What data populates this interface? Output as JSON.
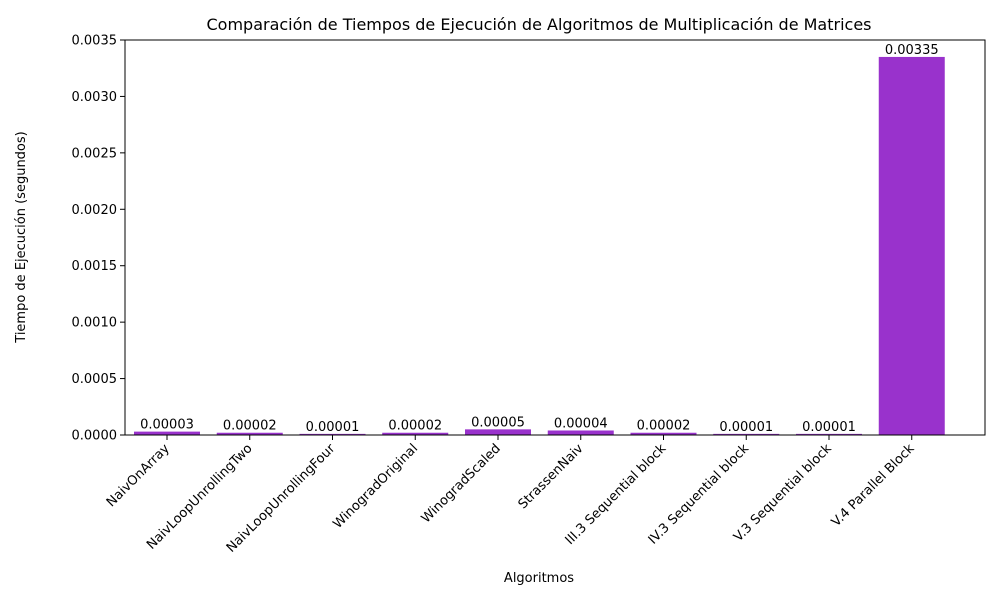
{
  "chart_data": {
    "type": "bar",
    "title": "Comparación de Tiempos de Ejecución de Algoritmos de Multiplicación de Matrices",
    "xlabel": "Algoritmos",
    "ylabel": "Tiempo de Ejecución (segundos)",
    "ylim": [
      0,
      0.0035
    ],
    "yticks": [
      "0.0000",
      "0.0005",
      "0.0010",
      "0.0015",
      "0.0020",
      "0.0025",
      "0.0030",
      "0.0035"
    ],
    "ytick_values": [
      0,
      0.0005,
      0.001,
      0.0015,
      0.002,
      0.0025,
      0.003,
      0.0035
    ],
    "grid": false,
    "bar_color": "#9932cc",
    "categories": [
      "NaivOnArray",
      "NaivLoopUnrollingTwo",
      "NaivLoopUnrollingFour",
      "WinogradOriginal",
      "WinogradScaled",
      "StrassenNaiv",
      "III.3 Sequential block",
      "IV.3 Sequential block",
      "V.3 Sequential block",
      "V.4 Parallel Block"
    ],
    "values": [
      3e-05,
      2e-05,
      1e-05,
      2e-05,
      5e-05,
      4e-05,
      2e-05,
      1e-05,
      1e-05,
      0.00335
    ],
    "value_labels": [
      "0.00003",
      "0.00002",
      "0.00001",
      "0.00002",
      "0.00005",
      "0.00004",
      "0.00002",
      "0.00001",
      "0.00001",
      "0.00335"
    ]
  }
}
